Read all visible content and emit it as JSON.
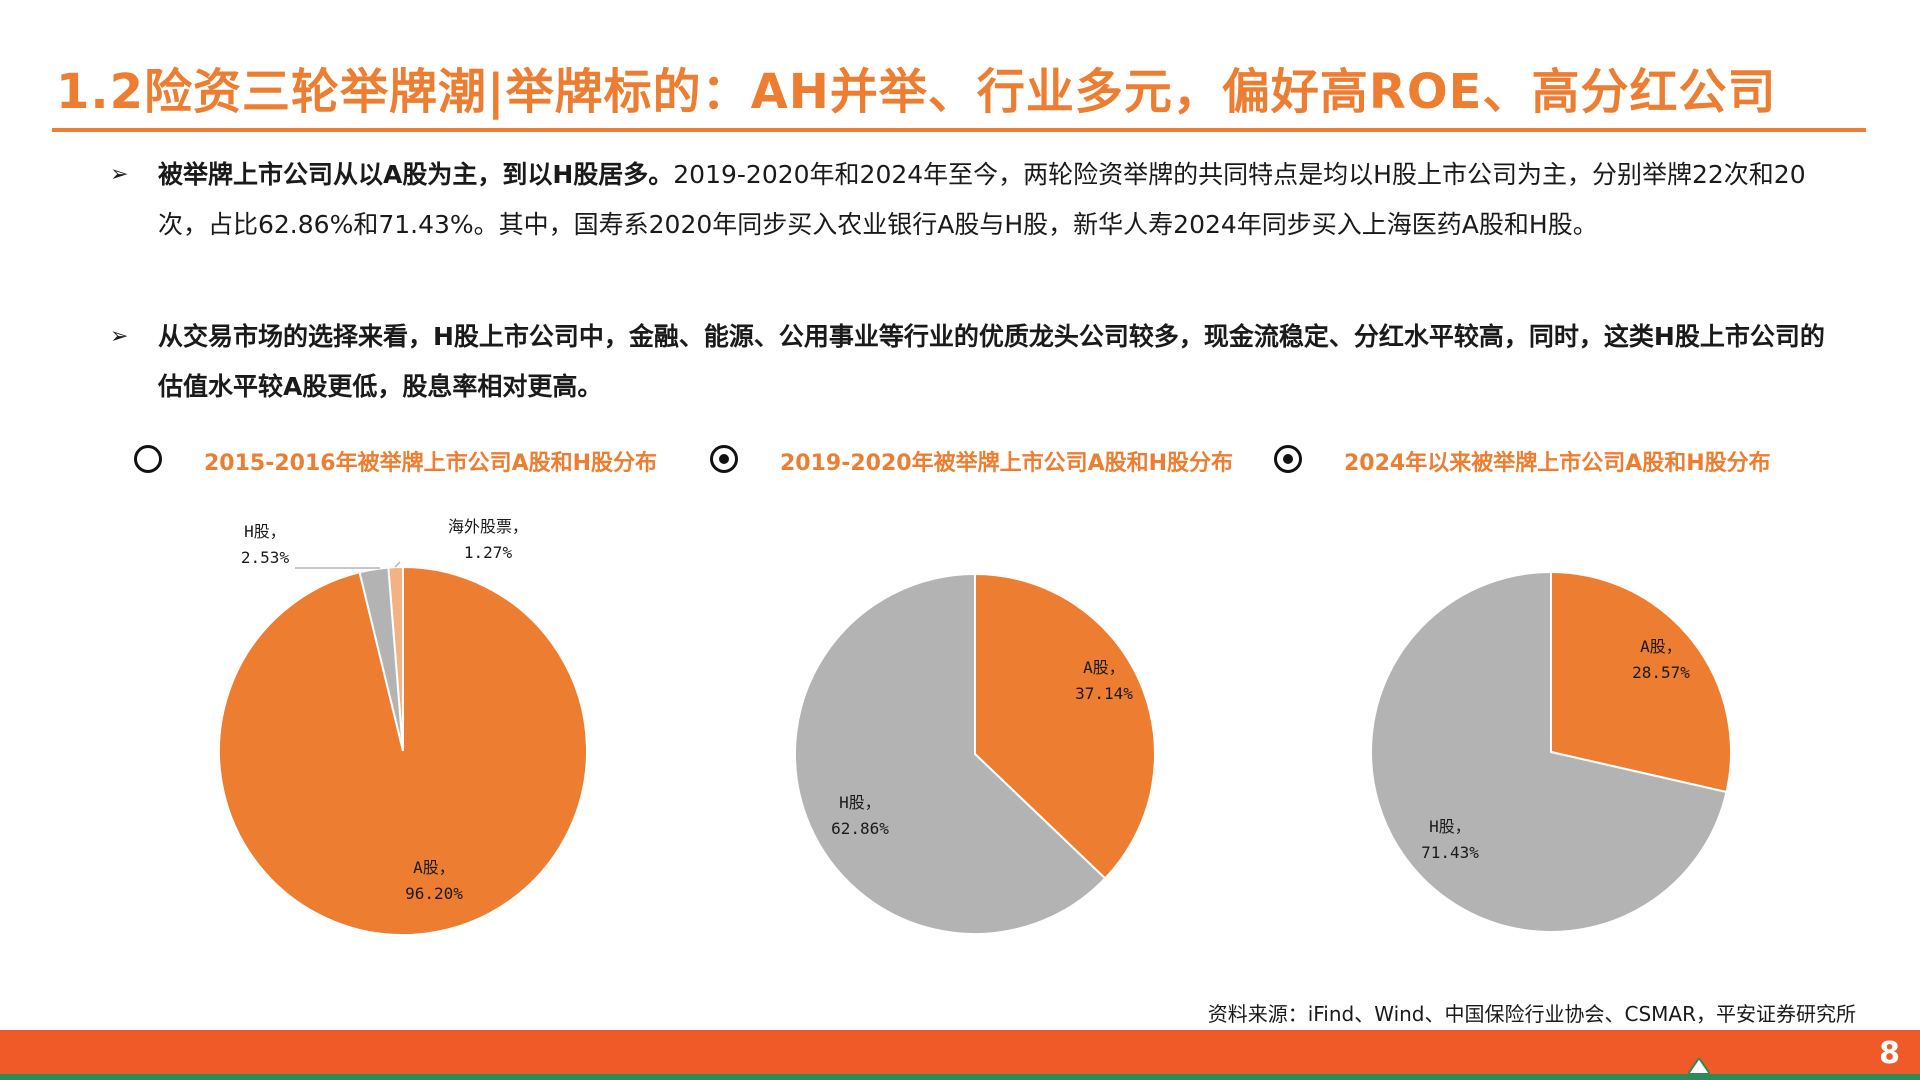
{
  "title": "1.2险资三轮举牌潮|举牌标的：AH并举、行业多元，偏好高ROE、高分红公司",
  "bullets": [
    {
      "lead": "被举牌上市公司从以A股为主，到以H股居多。",
      "rest": "2019-2020年和2024年至今，两轮险资举牌的共同特点是均以H股上市公司为主，分别举牌22次和20次，占比62.86%和71.43%。其中，国寿系2020年同步买入农业银行A股与H股，新华人寿2024年同步买入上海医药A股和H股。"
    },
    {
      "lead": "从交易市场的选择来看，H股上市公司中，金融、能源、公用事业等行业的优质龙头公司较多，现金流稳定、分红水平较高，同时，这类H股上市公司的估值水平较A股更低，股息率相对更高。",
      "rest": ""
    }
  ],
  "source": "资料来源：iFind、Wind、中国保险行业协会、CSMAR，平安证券研究所",
  "page_number": "8",
  "colors": {
    "accent": "#ed7d31",
    "a_share": "#ed7d31",
    "h_share": "#b3b3b3",
    "overseas": "#f4b183"
  },
  "chart_data": [
    {
      "type": "pie",
      "title": "2015-2016年被举牌上市公司A股和H股分布",
      "radio_selected": false,
      "slices": [
        {
          "name": "A股",
          "value": 96.2,
          "label_pct": "96.20%"
        },
        {
          "name": "H股",
          "value": 2.53,
          "label_pct": "2.53%"
        },
        {
          "name": "海外股票",
          "value": 1.27,
          "label_pct": "1.27%"
        }
      ]
    },
    {
      "type": "pie",
      "title": "2019-2020年被举牌上市公司A股和H股分布",
      "radio_selected": true,
      "slices": [
        {
          "name": "A股",
          "value": 37.14,
          "label_pct": "37.14%"
        },
        {
          "name": "H股",
          "value": 62.86,
          "label_pct": "62.86%"
        }
      ]
    },
    {
      "type": "pie",
      "title": "2024年以来被举牌上市公司A股和H股分布",
      "radio_selected": true,
      "slices": [
        {
          "name": "A股",
          "value": 28.57,
          "label_pct": "28.57%"
        },
        {
          "name": "H股",
          "value": 71.43,
          "label_pct": "71.43%"
        }
      ]
    }
  ]
}
